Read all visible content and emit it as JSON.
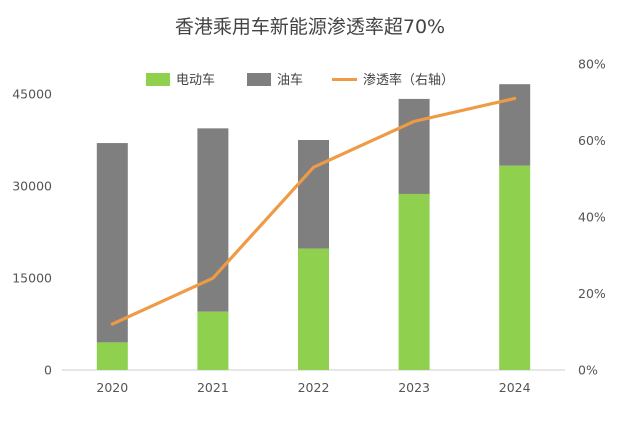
{
  "chart_data": {
    "type": "bar",
    "title": "香港乘用车新能源渗透率超70%",
    "categories": [
      "2020",
      "2021",
      "2022",
      "2023",
      "2024"
    ],
    "series": [
      {
        "name": "电动车",
        "kind": "stacked-bar",
        "axis": "left",
        "color": "#8fd14f",
        "values": [
          4500,
          9500,
          19800,
          28700,
          33300
        ]
      },
      {
        "name": "油车",
        "kind": "stacked-bar",
        "axis": "left",
        "color": "#7f7f7f",
        "values": [
          32500,
          29900,
          17700,
          15500,
          13300
        ]
      },
      {
        "name": "渗透率（右轴）",
        "kind": "line",
        "axis": "right",
        "color": "#ef9a45",
        "values": [
          0.12,
          0.24,
          0.53,
          0.65,
          0.71
        ]
      }
    ],
    "y_left": {
      "min": 0,
      "max": 45000,
      "ticks": [
        "0",
        "15000",
        "30000",
        "45000"
      ]
    },
    "y_right": {
      "min": 0,
      "max": 0.8,
      "ticks": [
        "0%",
        "20%",
        "40%",
        "60%",
        "80%"
      ]
    },
    "legend_position": "top",
    "grid": false
  }
}
